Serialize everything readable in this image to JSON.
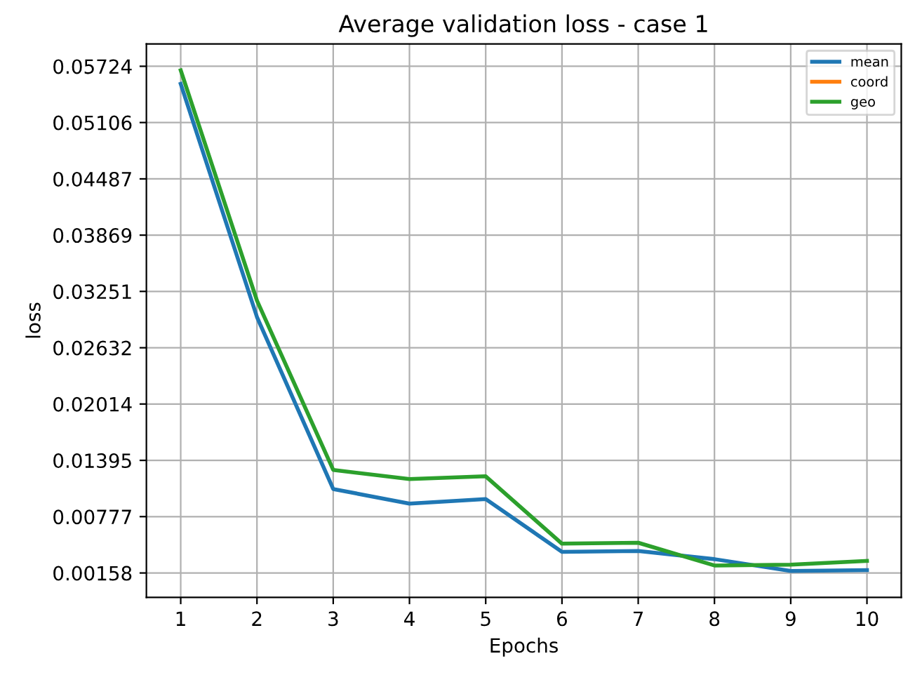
{
  "chart_data": {
    "type": "line",
    "title": "Average validation loss - case 1",
    "xlabel": "Epochs",
    "ylabel": "loss",
    "x": [
      1,
      2,
      3,
      4,
      5,
      6,
      7,
      8,
      9,
      10
    ],
    "series": [
      {
        "name": "mean",
        "color": "#1f77b4",
        "values": [
          0.0553,
          0.0297,
          0.0108,
          0.0092,
          0.0097,
          0.0039,
          0.004,
          0.0031,
          0.0018,
          0.0019
        ]
      },
      {
        "name": "coord",
        "color": "#ff7f0e",
        "values": [
          null,
          null,
          null,
          null,
          null,
          null,
          null,
          null,
          null,
          null
        ]
      },
      {
        "name": "geo",
        "color": "#2ca02c",
        "values": [
          0.0568,
          0.0315,
          0.0129,
          0.0119,
          0.0122,
          0.0048,
          0.0049,
          0.0024,
          0.0025,
          0.0029
        ]
      }
    ],
    "xlim": [
      0.55,
      10.45
    ],
    "xticks": [
      1,
      2,
      3,
      4,
      5,
      6,
      7,
      8,
      9,
      10
    ],
    "ylim": [
      -0.0011,
      0.0597
    ],
    "yticks": [
      0.00158,
      0.00777,
      0.01395,
      0.02014,
      0.02632,
      0.03251,
      0.03869,
      0.04487,
      0.05106,
      0.05724
    ],
    "grid": true,
    "legend": "top right",
    "line_style": "solid",
    "marker": "none"
  }
}
